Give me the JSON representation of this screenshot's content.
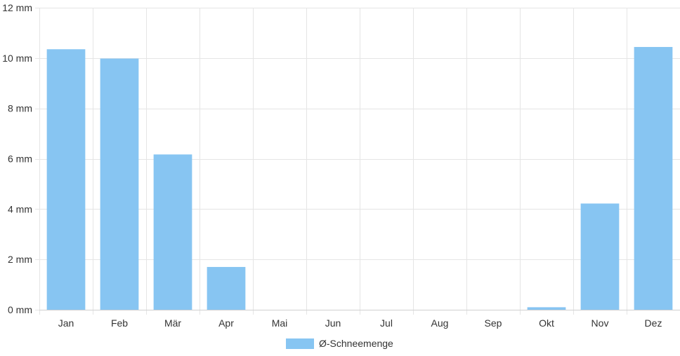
{
  "chart_data": {
    "type": "bar",
    "categories": [
      "Jan",
      "Feb",
      "Mär",
      "Apr",
      "Mai",
      "Jun",
      "Jul",
      "Aug",
      "Sep",
      "Okt",
      "Nov",
      "Dez"
    ],
    "series": [
      {
        "name": "Ø-Schneemenge",
        "values": [
          10.35,
          9.98,
          6.17,
          1.7,
          0,
          0,
          0,
          0,
          0,
          0.1,
          4.22,
          10.44
        ],
        "color": "#87c5f2"
      }
    ],
    "y_unit": "mm",
    "ylim": [
      0,
      12
    ],
    "yticks": [
      0,
      2,
      4,
      6,
      8,
      10,
      12
    ],
    "ytick_labels": [
      "0 mm",
      "2 mm",
      "4 mm",
      "6 mm",
      "8 mm",
      "10 mm",
      "12 mm"
    ],
    "grid": true,
    "legend": "bottom-center"
  }
}
